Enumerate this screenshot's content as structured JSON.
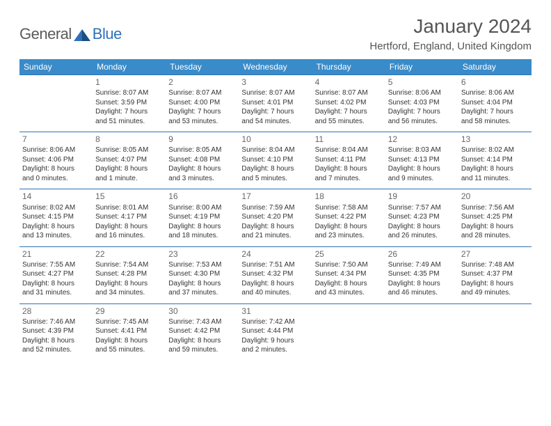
{
  "logo": {
    "text1": "General",
    "text2": "Blue"
  },
  "header": {
    "month": "January 2024",
    "location": "Hertford, England, United Kingdom"
  },
  "theme": {
    "headerBg": "#3a8bc9",
    "rule": "#2f71b8",
    "text": "#333333",
    "muted": "#666666",
    "logoBlue": "#2f71b8",
    "logoGray": "#5a5a5a"
  },
  "weekdays": [
    "Sunday",
    "Monday",
    "Tuesday",
    "Wednesday",
    "Thursday",
    "Friday",
    "Saturday"
  ],
  "weeks": [
    [
      null,
      {
        "n": "1",
        "sr": "Sunrise: 8:07 AM",
        "ss": "Sunset: 3:59 PM",
        "d1": "Daylight: 7 hours",
        "d2": "and 51 minutes."
      },
      {
        "n": "2",
        "sr": "Sunrise: 8:07 AM",
        "ss": "Sunset: 4:00 PM",
        "d1": "Daylight: 7 hours",
        "d2": "and 53 minutes."
      },
      {
        "n": "3",
        "sr": "Sunrise: 8:07 AM",
        "ss": "Sunset: 4:01 PM",
        "d1": "Daylight: 7 hours",
        "d2": "and 54 minutes."
      },
      {
        "n": "4",
        "sr": "Sunrise: 8:07 AM",
        "ss": "Sunset: 4:02 PM",
        "d1": "Daylight: 7 hours",
        "d2": "and 55 minutes."
      },
      {
        "n": "5",
        "sr": "Sunrise: 8:06 AM",
        "ss": "Sunset: 4:03 PM",
        "d1": "Daylight: 7 hours",
        "d2": "and 56 minutes."
      },
      {
        "n": "6",
        "sr": "Sunrise: 8:06 AM",
        "ss": "Sunset: 4:04 PM",
        "d1": "Daylight: 7 hours",
        "d2": "and 58 minutes."
      }
    ],
    [
      {
        "n": "7",
        "sr": "Sunrise: 8:06 AM",
        "ss": "Sunset: 4:06 PM",
        "d1": "Daylight: 8 hours",
        "d2": "and 0 minutes."
      },
      {
        "n": "8",
        "sr": "Sunrise: 8:05 AM",
        "ss": "Sunset: 4:07 PM",
        "d1": "Daylight: 8 hours",
        "d2": "and 1 minute."
      },
      {
        "n": "9",
        "sr": "Sunrise: 8:05 AM",
        "ss": "Sunset: 4:08 PM",
        "d1": "Daylight: 8 hours",
        "d2": "and 3 minutes."
      },
      {
        "n": "10",
        "sr": "Sunrise: 8:04 AM",
        "ss": "Sunset: 4:10 PM",
        "d1": "Daylight: 8 hours",
        "d2": "and 5 minutes."
      },
      {
        "n": "11",
        "sr": "Sunrise: 8:04 AM",
        "ss": "Sunset: 4:11 PM",
        "d1": "Daylight: 8 hours",
        "d2": "and 7 minutes."
      },
      {
        "n": "12",
        "sr": "Sunrise: 8:03 AM",
        "ss": "Sunset: 4:13 PM",
        "d1": "Daylight: 8 hours",
        "d2": "and 9 minutes."
      },
      {
        "n": "13",
        "sr": "Sunrise: 8:02 AM",
        "ss": "Sunset: 4:14 PM",
        "d1": "Daylight: 8 hours",
        "d2": "and 11 minutes."
      }
    ],
    [
      {
        "n": "14",
        "sr": "Sunrise: 8:02 AM",
        "ss": "Sunset: 4:15 PM",
        "d1": "Daylight: 8 hours",
        "d2": "and 13 minutes."
      },
      {
        "n": "15",
        "sr": "Sunrise: 8:01 AM",
        "ss": "Sunset: 4:17 PM",
        "d1": "Daylight: 8 hours",
        "d2": "and 16 minutes."
      },
      {
        "n": "16",
        "sr": "Sunrise: 8:00 AM",
        "ss": "Sunset: 4:19 PM",
        "d1": "Daylight: 8 hours",
        "d2": "and 18 minutes."
      },
      {
        "n": "17",
        "sr": "Sunrise: 7:59 AM",
        "ss": "Sunset: 4:20 PM",
        "d1": "Daylight: 8 hours",
        "d2": "and 21 minutes."
      },
      {
        "n": "18",
        "sr": "Sunrise: 7:58 AM",
        "ss": "Sunset: 4:22 PM",
        "d1": "Daylight: 8 hours",
        "d2": "and 23 minutes."
      },
      {
        "n": "19",
        "sr": "Sunrise: 7:57 AM",
        "ss": "Sunset: 4:23 PM",
        "d1": "Daylight: 8 hours",
        "d2": "and 26 minutes."
      },
      {
        "n": "20",
        "sr": "Sunrise: 7:56 AM",
        "ss": "Sunset: 4:25 PM",
        "d1": "Daylight: 8 hours",
        "d2": "and 28 minutes."
      }
    ],
    [
      {
        "n": "21",
        "sr": "Sunrise: 7:55 AM",
        "ss": "Sunset: 4:27 PM",
        "d1": "Daylight: 8 hours",
        "d2": "and 31 minutes."
      },
      {
        "n": "22",
        "sr": "Sunrise: 7:54 AM",
        "ss": "Sunset: 4:28 PM",
        "d1": "Daylight: 8 hours",
        "d2": "and 34 minutes."
      },
      {
        "n": "23",
        "sr": "Sunrise: 7:53 AM",
        "ss": "Sunset: 4:30 PM",
        "d1": "Daylight: 8 hours",
        "d2": "and 37 minutes."
      },
      {
        "n": "24",
        "sr": "Sunrise: 7:51 AM",
        "ss": "Sunset: 4:32 PM",
        "d1": "Daylight: 8 hours",
        "d2": "and 40 minutes."
      },
      {
        "n": "25",
        "sr": "Sunrise: 7:50 AM",
        "ss": "Sunset: 4:34 PM",
        "d1": "Daylight: 8 hours",
        "d2": "and 43 minutes."
      },
      {
        "n": "26",
        "sr": "Sunrise: 7:49 AM",
        "ss": "Sunset: 4:35 PM",
        "d1": "Daylight: 8 hours",
        "d2": "and 46 minutes."
      },
      {
        "n": "27",
        "sr": "Sunrise: 7:48 AM",
        "ss": "Sunset: 4:37 PM",
        "d1": "Daylight: 8 hours",
        "d2": "and 49 minutes."
      }
    ],
    [
      {
        "n": "28",
        "sr": "Sunrise: 7:46 AM",
        "ss": "Sunset: 4:39 PM",
        "d1": "Daylight: 8 hours",
        "d2": "and 52 minutes."
      },
      {
        "n": "29",
        "sr": "Sunrise: 7:45 AM",
        "ss": "Sunset: 4:41 PM",
        "d1": "Daylight: 8 hours",
        "d2": "and 55 minutes."
      },
      {
        "n": "30",
        "sr": "Sunrise: 7:43 AM",
        "ss": "Sunset: 4:42 PM",
        "d1": "Daylight: 8 hours",
        "d2": "and 59 minutes."
      },
      {
        "n": "31",
        "sr": "Sunrise: 7:42 AM",
        "ss": "Sunset: 4:44 PM",
        "d1": "Daylight: 9 hours",
        "d2": "and 2 minutes."
      },
      null,
      null,
      null
    ]
  ]
}
